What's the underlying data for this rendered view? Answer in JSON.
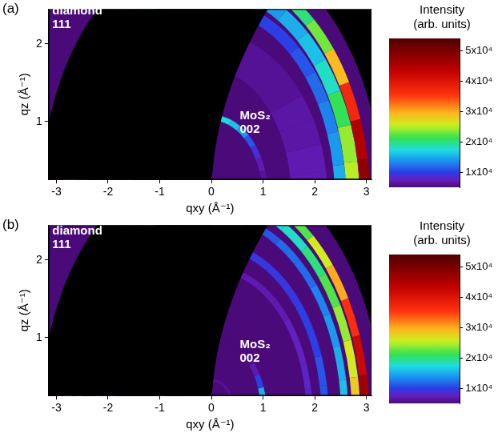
{
  "chart_data": [
    {
      "type": "heatmap",
      "label": "(a)",
      "x_label": "qxy (Å⁻¹)",
      "y_label": "qz (Å⁻¹)",
      "xlim": [
        -3.15,
        3.1
      ],
      "xticks": [
        -3,
        -2,
        -1,
        0,
        1,
        2,
        3
      ],
      "ylim": [
        0.25,
        2.45
      ],
      "yticks": [
        1,
        2
      ],
      "grid": false,
      "background": 5000,
      "angles": [
        5,
        15,
        25,
        35,
        45,
        55,
        65,
        75,
        85
      ],
      "rings": [
        {
          "q": 1.9,
          "width": 0.7,
          "intensities": [
            7000,
            7000,
            6500,
            6500,
            6000,
            6000,
            6000,
            6000,
            6000
          ]
        },
        {
          "q": 2.5,
          "width": 0.22,
          "intensities": [
            15000,
            14000,
            13000,
            12000,
            11000,
            10000,
            10000,
            10000,
            10000
          ]
        },
        {
          "q": 2.74,
          "width": 0.26,
          "intensities": [
            25000,
            24000,
            21000,
            18000,
            16000,
            15000,
            14000,
            14000,
            14000
          ]
        },
        {
          "q": 2.97,
          "width": 0.2,
          "intensities": [
            48000,
            45000,
            37000,
            29000,
            23000,
            20000,
            18000,
            18000,
            18000
          ]
        },
        {
          "q": 1.05,
          "width": 0.11,
          "intensities": [
            6000,
            6000,
            7000,
            9000,
            11000,
            14000,
            16000,
            17000,
            17000
          ]
        }
      ],
      "annotations": [
        {
          "text": [
            "diamond",
            "111"
          ],
          "x": -3.08,
          "y": 2.5
        },
        {
          "text": [
            "MoS₂",
            "002"
          ],
          "x": 0.55,
          "y": 1.15
        }
      ],
      "colorbar": {
        "label": [
          "Intensity",
          "(arb. units)"
        ],
        "range": [
          5000,
          54000
        ],
        "ticks": [
          {
            "value": 10000,
            "label": "1x10⁴"
          },
          {
            "value": 20000,
            "label": "2x10⁴"
          },
          {
            "value": 30000,
            "label": "3x10⁴"
          },
          {
            "value": 40000,
            "label": "4x10⁴"
          },
          {
            "value": 50000,
            "label": "5x10⁴"
          }
        ]
      }
    },
    {
      "type": "heatmap",
      "label": "(b)",
      "x_label": "qxy (Å⁻¹)",
      "y_label": "qz (Å⁻¹)",
      "xlim": [
        -3.15,
        3.1
      ],
      "xticks": [
        -3,
        -2,
        -1,
        0,
        1,
        2,
        3
      ],
      "ylim": [
        0.25,
        2.45
      ],
      "yticks": [
        1,
        2
      ],
      "grid": false,
      "background": 5000,
      "angles": [
        5,
        15,
        25,
        35,
        45,
        55,
        65,
        75,
        85
      ],
      "rings": [
        {
          "q": 1.9,
          "width": 0.12,
          "intensities": [
            8000,
            8000,
            7500,
            7500,
            7000,
            7000,
            7000,
            7000,
            7000
          ]
        },
        {
          "q": 2.2,
          "width": 0.14,
          "intensities": [
            11000,
            11000,
            10000,
            10000,
            9500,
            9500,
            9500,
            9500,
            9500
          ]
        },
        {
          "q": 2.58,
          "width": 0.14,
          "intensities": [
            16000,
            15000,
            14000,
            13000,
            12000,
            12000,
            11000,
            11000,
            11000
          ]
        },
        {
          "q": 2.8,
          "width": 0.16,
          "intensities": [
            28000,
            26000,
            24000,
            22000,
            20000,
            18000,
            17000,
            16000,
            16000
          ]
        },
        {
          "q": 2.98,
          "width": 0.15,
          "intensities": [
            46000,
            42000,
            36000,
            30000,
            26000,
            22000,
            20000,
            19000,
            18000
          ]
        },
        {
          "q": 0.45,
          "width": 0.05,
          "intensities": [
            7000,
            7000,
            6500,
            6000,
            6000,
            6000,
            6000,
            6000,
            6000
          ]
        },
        {
          "q": 1.02,
          "width": 0.11,
          "intensities": [
            18000,
            15000,
            10000,
            7000,
            5500,
            5000,
            5000,
            5000,
            5000
          ]
        }
      ],
      "annotations": [
        {
          "text": [
            "diamond",
            "111"
          ],
          "x": -3.08,
          "y": 2.45
        },
        {
          "text": [
            "MoS₂",
            "002"
          ],
          "x": 0.55,
          "y": 0.98
        }
      ],
      "colorbar": {
        "label": [
          "Intensity",
          "(arb. units)"
        ],
        "range": [
          5000,
          54000
        ],
        "ticks": [
          {
            "value": 10000,
            "label": "1x10⁴"
          },
          {
            "value": 20000,
            "label": "2x10⁴"
          },
          {
            "value": 30000,
            "label": "3x10⁴"
          },
          {
            "value": 40000,
            "label": "4x10⁴"
          },
          {
            "value": 50000,
            "label": "5x10⁴"
          }
        ]
      }
    }
  ]
}
